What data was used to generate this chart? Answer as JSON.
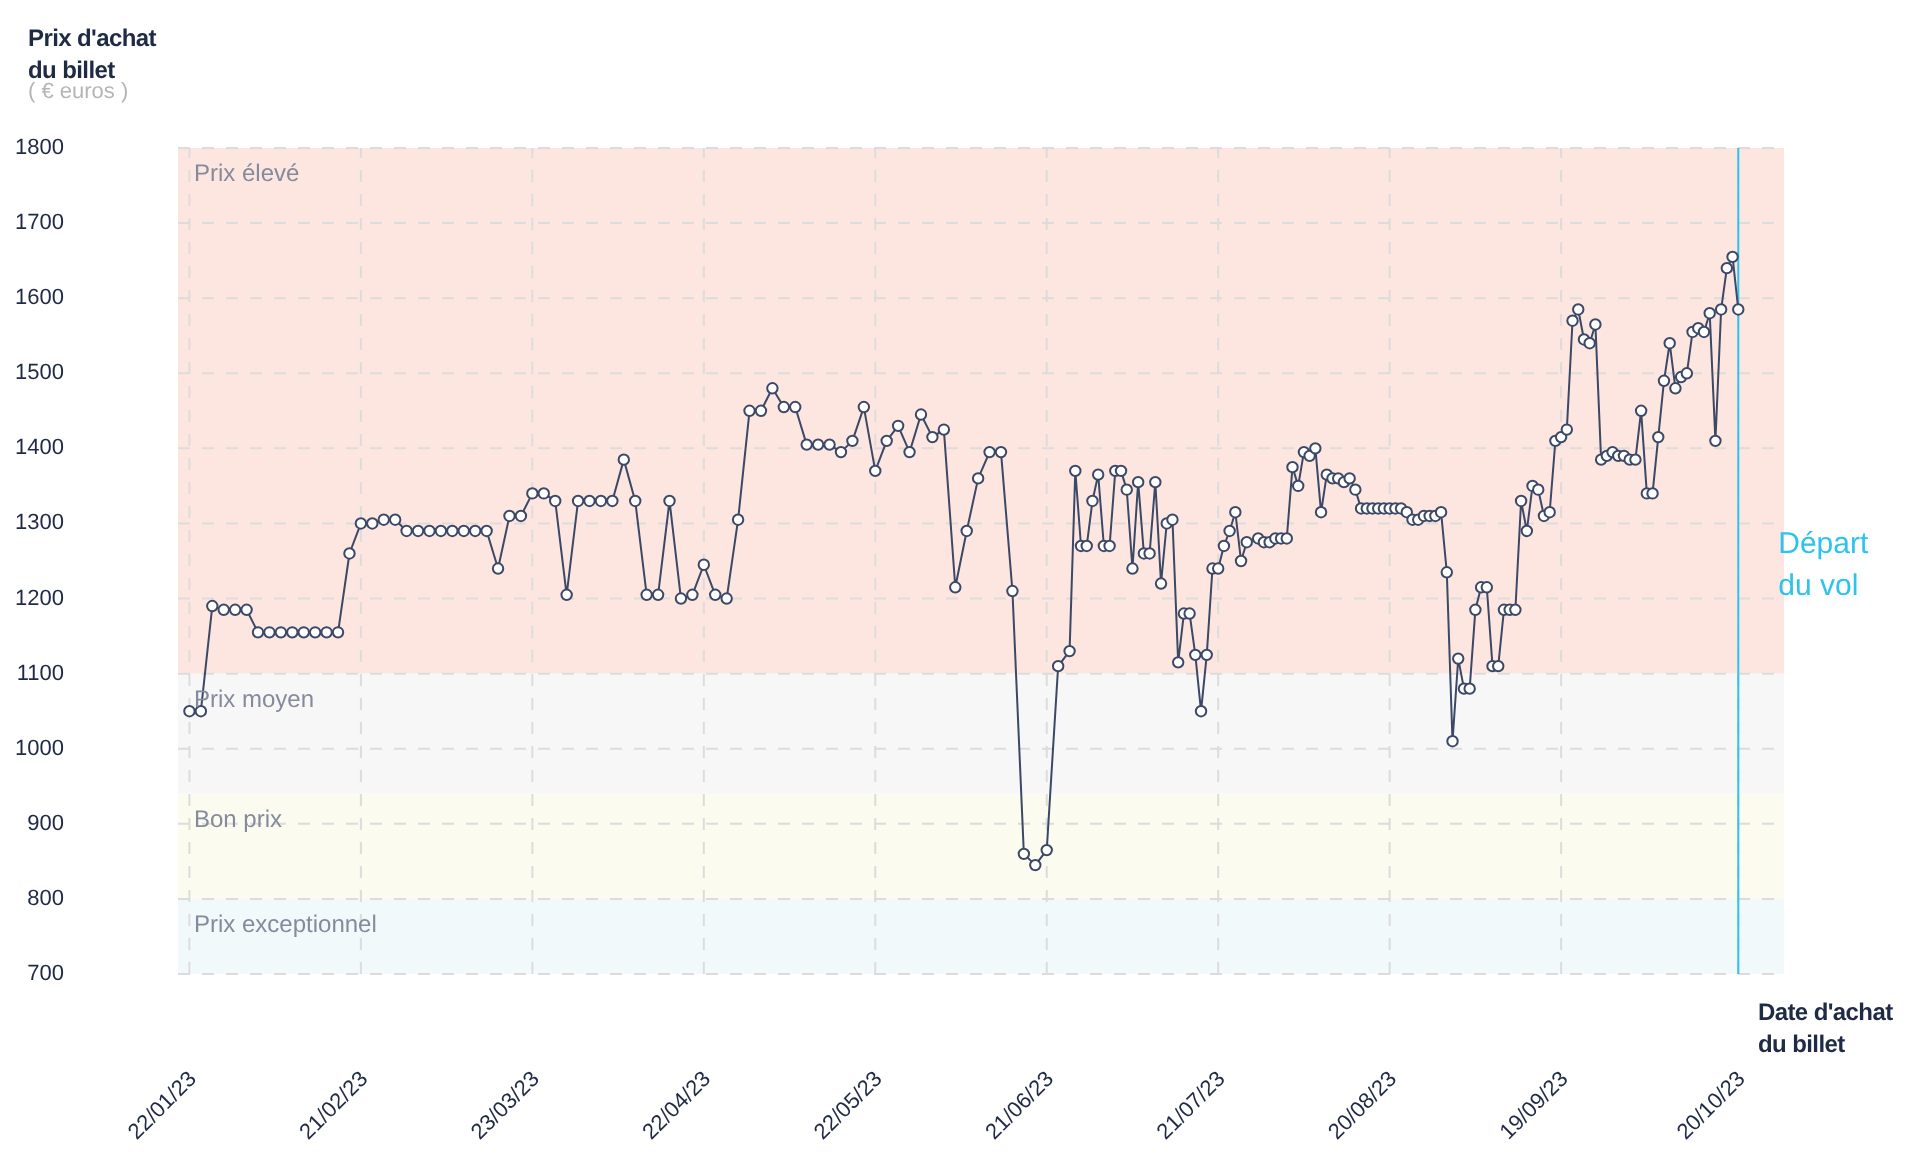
{
  "chart_data": {
    "type": "line",
    "ylabel": "Prix d'achat du billet",
    "xlabel": "Date d'achat du billet",
    "annotations": [
      "( € euros )"
    ],
    "x": [
      "2023-01-22",
      "2023-01-24",
      "2023-01-26",
      "2023-01-28",
      "2023-01-30",
      "2023-02-01",
      "2023-02-03",
      "2023-02-05",
      "2023-02-07",
      "2023-02-09",
      "2023-02-11",
      "2023-02-13",
      "2023-02-15",
      "2023-02-17",
      "2023-02-19",
      "2023-02-21",
      "2023-02-23",
      "2023-02-25",
      "2023-02-27",
      "2023-03-01",
      "2023-03-03",
      "2023-03-05",
      "2023-03-07",
      "2023-03-09",
      "2023-03-11",
      "2023-03-13",
      "2023-03-15",
      "2023-03-17",
      "2023-03-19",
      "2023-03-21",
      "2023-03-23",
      "2023-03-25",
      "2023-03-27",
      "2023-03-29",
      "2023-03-31",
      "2023-04-02",
      "2023-04-04",
      "2023-04-06",
      "2023-04-08",
      "2023-04-10",
      "2023-04-12",
      "2023-04-14",
      "2023-04-16",
      "2023-04-18",
      "2023-04-20",
      "2023-04-22",
      "2023-04-24",
      "2023-04-26",
      "2023-04-28",
      "2023-04-30",
      "2023-05-02",
      "2023-05-04",
      "2023-05-06",
      "2023-05-08",
      "2023-05-10",
      "2023-05-12",
      "2023-05-14",
      "2023-05-16",
      "2023-05-18",
      "2023-05-20",
      "2023-05-22",
      "2023-05-24",
      "2023-05-26",
      "2023-05-28",
      "2023-05-30",
      "2023-06-01",
      "2023-06-03",
      "2023-06-05",
      "2023-06-07",
      "2023-06-09",
      "2023-06-11",
      "2023-06-13",
      "2023-06-15",
      "2023-06-17",
      "2023-06-19",
      "2023-06-21",
      "2023-06-23",
      "2023-06-25",
      "2023-06-26",
      "2023-06-27",
      "2023-06-28",
      "2023-06-29",
      "2023-06-30",
      "2023-07-01",
      "2023-07-02",
      "2023-07-03",
      "2023-07-04",
      "2023-07-05",
      "2023-07-06",
      "2023-07-07",
      "2023-07-08",
      "2023-07-09",
      "2023-07-10",
      "2023-07-11",
      "2023-07-12",
      "2023-07-13",
      "2023-07-14",
      "2023-07-15",
      "2023-07-16",
      "2023-07-17",
      "2023-07-18",
      "2023-07-19",
      "2023-07-20",
      "2023-07-21",
      "2023-07-22",
      "2023-07-23",
      "2023-07-24",
      "2023-07-25",
      "2023-07-26",
      "2023-07-28",
      "2023-07-29",
      "2023-07-30",
      "2023-07-31",
      "2023-08-01",
      "2023-08-02",
      "2023-08-03",
      "2023-08-04",
      "2023-08-05",
      "2023-08-06",
      "2023-08-07",
      "2023-08-08",
      "2023-08-09",
      "2023-08-10",
      "2023-08-11",
      "2023-08-12",
      "2023-08-13",
      "2023-08-14",
      "2023-08-15",
      "2023-08-16",
      "2023-08-17",
      "2023-08-18",
      "2023-08-19",
      "2023-08-20",
      "2023-08-21",
      "2023-08-22",
      "2023-08-23",
      "2023-08-24",
      "2023-08-25",
      "2023-08-26",
      "2023-08-27",
      "2023-08-28",
      "2023-08-29",
      "2023-08-30",
      "2023-08-31",
      "2023-09-01",
      "2023-09-02",
      "2023-09-03",
      "2023-09-04",
      "2023-09-05",
      "2023-09-06",
      "2023-09-07",
      "2023-09-08",
      "2023-09-09",
      "2023-09-10",
      "2023-09-11",
      "2023-09-12",
      "2023-09-13",
      "2023-09-14",
      "2023-09-15",
      "2023-09-16",
      "2023-09-17",
      "2023-09-18",
      "2023-09-19",
      "2023-09-20",
      "2023-09-21",
      "2023-09-22",
      "2023-09-23",
      "2023-09-24",
      "2023-09-25",
      "2023-09-26",
      "2023-09-27",
      "2023-09-28",
      "2023-09-29",
      "2023-09-30",
      "2023-10-01",
      "2023-10-02",
      "2023-10-03",
      "2023-10-04",
      "2023-10-05",
      "2023-10-06",
      "2023-10-07",
      "2023-10-08",
      "2023-10-09",
      "2023-10-10",
      "2023-10-11",
      "2023-10-12",
      "2023-10-13",
      "2023-10-14",
      "2023-10-15",
      "2023-10-16",
      "2023-10-17",
      "2023-10-18",
      "2023-10-19",
      "2023-10-20"
    ],
    "series": [
      {
        "color": "#3b4866",
        "values": [
          1050,
          1050,
          1190,
          1185,
          1185,
          1185,
          1155,
          1155,
          1155,
          1155,
          1155,
          1155,
          1155,
          1155,
          1260,
          1300,
          1300,
          1305,
          1305,
          1290,
          1290,
          1290,
          1290,
          1290,
          1290,
          1290,
          1290,
          1240,
          1310,
          1310,
          1340,
          1340,
          1330,
          1205,
          1330,
          1330,
          1330,
          1330,
          1385,
          1330,
          1205,
          1205,
          1330,
          1200,
          1205,
          1245,
          1205,
          1200,
          1305,
          1450,
          1450,
          1480,
          1455,
          1455,
          1405,
          1405,
          1405,
          1395,
          1410,
          1455,
          1370,
          1410,
          1430,
          1395,
          1445,
          1415,
          1425,
          1215,
          1290,
          1360,
          1395,
          1395,
          1210,
          860,
          845,
          865,
          1110,
          1130,
          1370,
          1270,
          1270,
          1330,
          1365,
          1270,
          1270,
          1370,
          1370,
          1345,
          1240,
          1355,
          1260,
          1260,
          1355,
          1220,
          1300,
          1305,
          1115,
          1180,
          1180,
          1125,
          1050,
          1125,
          1240,
          1240,
          1270,
          1290,
          1315,
          1250,
          1275,
          1280,
          1275,
          1275,
          1280,
          1280,
          1280,
          1375,
          1350,
          1395,
          1390,
          1400,
          1315,
          1365,
          1360,
          1360,
          1355,
          1360,
          1345,
          1320,
          1320,
          1320,
          1320,
          1320,
          1320,
          1320,
          1320,
          1315,
          1305,
          1305,
          1310,
          1310,
          1310,
          1315,
          1235,
          1010,
          1120,
          1080,
          1080,
          1185,
          1215,
          1215,
          1110,
          1110,
          1185,
          1185,
          1185,
          1330,
          1290,
          1350,
          1345,
          1310,
          1315,
          1410,
          1415,
          1425,
          1570,
          1585,
          1545,
          1540,
          1565,
          1385,
          1390,
          1395,
          1390,
          1390,
          1385,
          1385,
          1450,
          1340,
          1340,
          1415,
          1490,
          1540,
          1480,
          1495,
          1500,
          1555,
          1560,
          1555,
          1580,
          1410,
          1585,
          1640,
          1655,
          1585
        ]
      }
    ],
    "xlim": [
      "2023-01-20",
      "2023-10-28"
    ],
    "xticks": [
      {
        "value": "2023-01-22",
        "label": "22/01/23"
      },
      {
        "value": "2023-02-21",
        "label": "21/02/23"
      },
      {
        "value": "2023-03-23",
        "label": "23/03/23"
      },
      {
        "value": "2023-04-22",
        "label": "22/04/23"
      },
      {
        "value": "2023-05-22",
        "label": "22/05/23"
      },
      {
        "value": "2023-06-21",
        "label": "21/06/23"
      },
      {
        "value": "2023-07-21",
        "label": "21/07/23"
      },
      {
        "value": "2023-08-20",
        "label": "20/08/23"
      },
      {
        "value": "2023-09-19",
        "label": "19/09/23"
      },
      {
        "value": "2023-10-20",
        "label": "20/10/23"
      }
    ],
    "ylim": [
      700,
      1800
    ],
    "yticks": [
      700,
      800,
      900,
      1000,
      1100,
      1200,
      1300,
      1400,
      1500,
      1600,
      1700,
      1800
    ],
    "bands": [
      {
        "axis": "y",
        "from": 1100,
        "to": 1800,
        "label": "Prix élevé",
        "color": "#fde6e0"
      },
      {
        "axis": "y",
        "from": 940,
        "to": 1100,
        "label": "Prix moyen",
        "color": "#f7f7f7"
      },
      {
        "axis": "y",
        "from": 800,
        "to": 940,
        "label": "Bon prix",
        "color": "#fbfbf0"
      },
      {
        "axis": "y",
        "from": 700,
        "to": 800,
        "label": "Prix exceptionnel",
        "color": "#f2f9fb"
      }
    ],
    "ref_lines": [
      {
        "axis": "x",
        "value": "2023-10-20",
        "label": "Départ du vol",
        "color": "#2cc3ef"
      }
    ],
    "grid": true,
    "legend": false,
    "marker": "circle",
    "line_style": "solid"
  }
}
